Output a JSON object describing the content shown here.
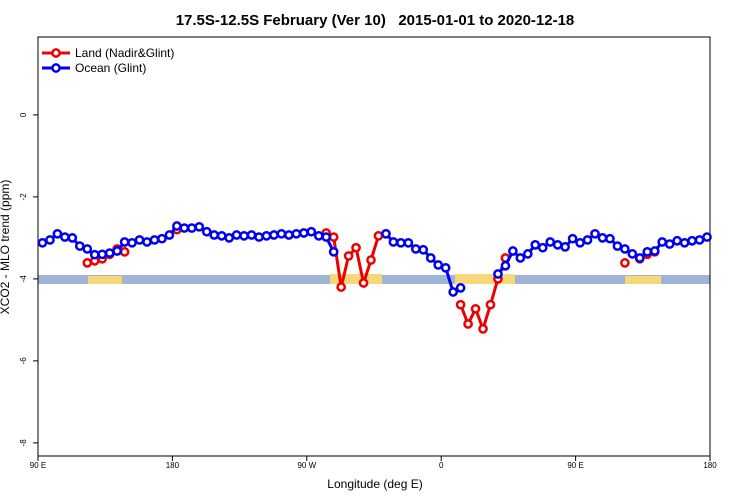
{
  "chart_data": {
    "type": "line",
    "title": "17.5S-12.5S February (Ver 10)   2015-01-01 to 2020-12-18",
    "x_label": "Longitude (deg E)",
    "y_label": "XCO2 - MLO trend (ppm)",
    "xlim": [
      90,
      540
    ],
    "ylim": [
      -8.32,
      1.9
    ],
    "xticks": [
      {
        "value": 90,
        "label": "90 E"
      },
      180,
      {
        "value": 270,
        "label": "90 W"
      },
      {
        "value": 360,
        "label": "0"
      },
      {
        "value": 450,
        "label": "90 E"
      },
      {
        "value": 540,
        "label": "180"
      }
    ],
    "yticks": [
      -8,
      -6,
      -4,
      -2,
      0
    ],
    "legend": "top-left",
    "x": [
      93,
      98,
      103,
      108,
      113,
      118,
      123,
      128,
      133,
      138,
      143,
      148,
      153,
      158,
      163,
      168,
      173,
      178,
      183,
      188,
      193,
      198,
      203,
      208,
      213,
      218,
      223,
      228,
      233,
      238,
      243,
      248,
      253,
      258,
      263,
      268,
      273,
      278,
      283,
      288,
      293,
      298,
      303,
      308,
      313,
      318,
      323,
      328,
      333,
      338,
      343,
      348,
      353,
      358,
      363,
      368,
      373,
      378,
      383,
      388,
      393,
      398,
      403,
      408,
      413,
      418,
      423,
      428,
      433,
      438,
      443,
      448,
      453,
      458,
      463,
      468,
      473,
      478,
      483,
      488,
      493,
      498,
      503,
      508,
      513,
      518,
      523,
      528,
      533,
      538
    ],
    "series": [
      {
        "name": "Land (Nadir&Glint)",
        "color": "#ee0000",
        "values": [
          null,
          null,
          null,
          null,
          null,
          null,
          -3.61,
          -3.56,
          -3.51,
          -3.4,
          -3.27,
          -3.34,
          null,
          null,
          null,
          null,
          null,
          null,
          -2.8,
          null,
          null,
          null,
          null,
          null,
          null,
          null,
          null,
          null,
          null,
          null,
          null,
          null,
          null,
          null,
          null,
          null,
          null,
          null,
          -2.88,
          -2.98,
          -4.2,
          -3.44,
          -3.24,
          -4.1,
          -3.54,
          -2.95,
          -2.9,
          null,
          null,
          null,
          null,
          null,
          null,
          null,
          null,
          null,
          -4.63,
          -5.1,
          -4.73,
          -5.22,
          -4.63,
          -4.0,
          -3.49,
          null,
          null,
          null,
          null,
          null,
          null,
          null,
          null,
          null,
          null,
          null,
          null,
          null,
          null,
          null,
          -3.61,
          null,
          -3.51,
          -3.4,
          -3.34,
          null,
          null,
          null,
          null,
          null,
          null,
          null
        ]
      },
      {
        "name": "Ocean (Glint)",
        "color": "#0000ee",
        "values": [
          -3.12,
          -3.05,
          -2.9,
          -2.98,
          -3.0,
          -3.2,
          -3.27,
          -3.41,
          -3.4,
          -3.37,
          -3.32,
          -3.1,
          -3.12,
          -3.05,
          -3.1,
          -3.05,
          -3.02,
          -2.93,
          -2.71,
          -2.76,
          -2.76,
          -2.73,
          -2.85,
          -2.93,
          -2.95,
          -3.0,
          -2.93,
          -2.95,
          -2.93,
          -2.98,
          -2.95,
          -2.93,
          -2.9,
          -2.93,
          -2.9,
          -2.88,
          -2.85,
          -2.95,
          -2.98,
          -3.34,
          null,
          null,
          null,
          null,
          null,
          null,
          -2.9,
          -3.1,
          -3.12,
          -3.12,
          -3.27,
          -3.29,
          -3.49,
          -3.66,
          -3.73,
          -4.32,
          -4.22,
          null,
          null,
          null,
          null,
          -3.88,
          -3.68,
          -3.32,
          -3.49,
          -3.39,
          -3.17,
          -3.24,
          -3.1,
          -3.17,
          -3.22,
          -3.02,
          -3.12,
          -3.05,
          -2.9,
          -3.0,
          -3.02,
          -3.2,
          -3.27,
          -3.39,
          -3.49,
          -3.34,
          -3.32,
          -3.1,
          -3.15,
          -3.07,
          -3.12,
          -3.07,
          -3.05,
          -2.98
        ]
      }
    ]
  }
}
